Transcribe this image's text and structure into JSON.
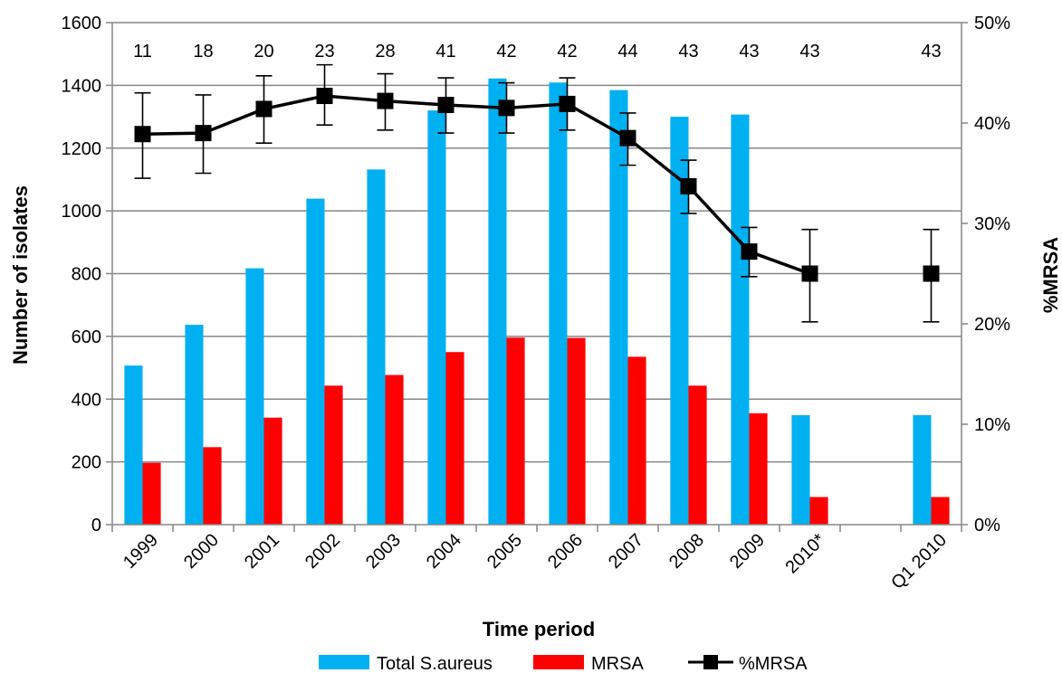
{
  "chart_data": {
    "type": "bar",
    "categories": [
      "1999",
      "2000",
      "2001",
      "2002",
      "2003",
      "2004",
      "2005",
      "2006",
      "2007",
      "2008",
      "2009",
      "2010*",
      "",
      "Q1 2010"
    ],
    "series": [
      {
        "name": "Total S.aureus",
        "type": "bar",
        "axis": "left",
        "color": "#00B0F0",
        "values": [
          507,
          637,
          817,
          1039,
          1132,
          1320,
          1422,
          1409,
          1385,
          1300,
          1307,
          349,
          null,
          349
        ]
      },
      {
        "name": "MRSA",
        "type": "bar",
        "axis": "left",
        "color": "#FF0000",
        "values": [
          197,
          247,
          341,
          443,
          477,
          550,
          596,
          595,
          535,
          443,
          355,
          88,
          null,
          88
        ]
      },
      {
        "name": "%MRSA",
        "type": "line",
        "axis": "right",
        "color": "#000000",
        "marker": "square",
        "values": [
          0.389,
          0.39,
          0.414,
          0.427,
          0.422,
          0.418,
          0.415,
          0.419,
          0.385,
          0.337,
          0.272,
          0.25,
          null,
          0.25
        ],
        "error_low": [
          0.345,
          0.35,
          0.38,
          0.398,
          0.393,
          0.39,
          0.39,
          0.393,
          0.358,
          0.31,
          0.247,
          0.202,
          null,
          0.202
        ],
        "error_high": [
          0.43,
          0.428,
          0.447,
          0.458,
          0.449,
          0.445,
          0.44,
          0.445,
          0.41,
          0.363,
          0.296,
          0.294,
          null,
          0.294
        ]
      }
    ],
    "count_labels": [
      "11",
      "18",
      "20",
      "23",
      "28",
      "41",
      "42",
      "42",
      "44",
      "43",
      "43",
      "43",
      "",
      "43"
    ],
    "xlabel": "Time period",
    "ylabel": "Number of isolates",
    "y2label": "%MRSA",
    "ylim": [
      0,
      1600
    ],
    "y_ticks": [
      0,
      200,
      400,
      600,
      800,
      1000,
      1200,
      1400,
      1600
    ],
    "y_tick_labels": [
      "0",
      "200",
      "400",
      "600",
      "800",
      "1000",
      "1200",
      "1400",
      "1600"
    ],
    "y2lim": [
      0,
      0.5
    ],
    "y2_ticks": [
      0,
      0.1,
      0.2,
      0.3,
      0.4,
      0.5
    ],
    "y2_tick_labels": [
      "0%",
      "10%",
      "20%",
      "30%",
      "40%",
      "50%"
    ],
    "grid": true,
    "legend": "bottom",
    "legend_entries": [
      "Total S.aureus",
      "MRSA",
      "%MRSA"
    ]
  }
}
